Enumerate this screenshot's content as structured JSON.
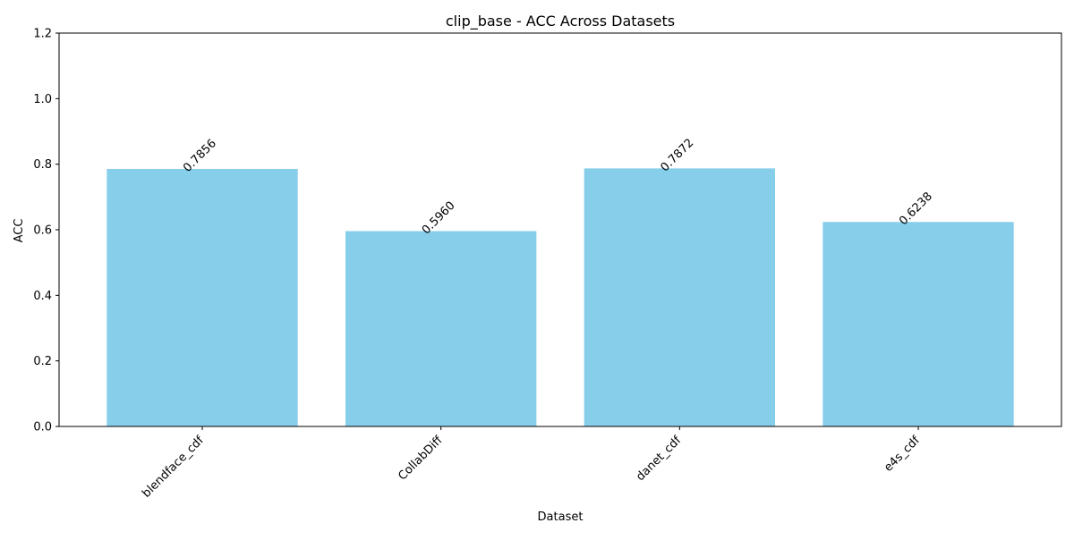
{
  "chart_data": {
    "type": "bar",
    "title": "clip_base - ACC Across Datasets",
    "xlabel": "Dataset",
    "ylabel": "ACC",
    "categories": [
      "blendface_cdf",
      "CollabDiff",
      "danet_cdf",
      "e4s_cdf"
    ],
    "values": [
      0.7856,
      0.596,
      0.7872,
      0.6238
    ],
    "data_labels": [
      "0.7856",
      "0.5960",
      "0.7872",
      "0.6238"
    ],
    "ylim": [
      0,
      1.2
    ],
    "yticks": [
      0.0,
      0.2,
      0.4,
      0.6,
      0.8,
      1.0,
      1.2
    ],
    "ytick_labels": [
      "0.0",
      "0.2",
      "0.4",
      "0.6",
      "0.8",
      "1.0",
      "1.2"
    ],
    "grid": false,
    "legend": "none",
    "bar_color": "#87CEEB"
  }
}
